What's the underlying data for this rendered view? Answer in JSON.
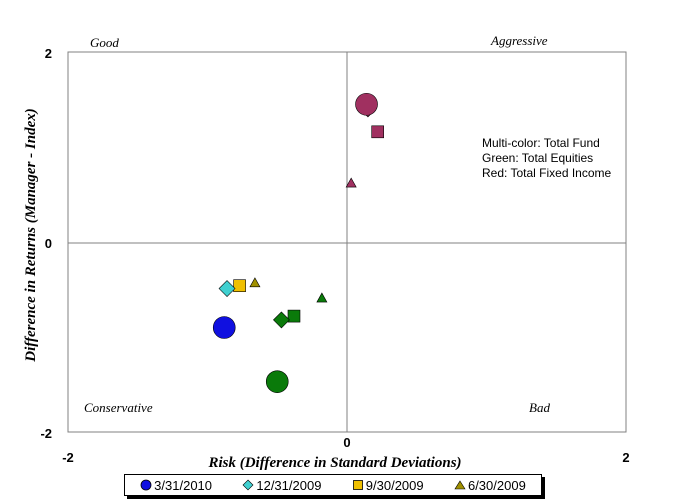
{
  "chart_data": {
    "type": "scatter",
    "xlabel": "Risk (Difference in Standard Deviations)",
    "ylabel": "Difference in Returns (Manager - Index)",
    "xlim": [
      -2,
      2
    ],
    "ylim": [
      -2,
      2
    ],
    "x_ticks": [
      "-2",
      "0",
      "2"
    ],
    "y_ticks": [
      "2",
      "0",
      "-2"
    ],
    "quadrant_labels": {
      "top_left": "Good",
      "top_right": "Aggressive",
      "bottom_left": "Conservative",
      "bottom_right": "Bad"
    },
    "annotation": [
      "Multi-color: Total Fund",
      "Green: Total Equities",
      "Red: Total Fixed Income"
    ],
    "colors": {
      "total_fund": {
        "3/31/2010": "#1010e0",
        "12/31/2009": "#40d0d0",
        "9/30/2009": "#f0c000",
        "6/30/2009": "#a09000"
      },
      "total_equities": "#0a7a0a",
      "total_fixed_income": "#a03060"
    },
    "series": [
      {
        "name": "3/31/2010",
        "marker": "circle",
        "points": [
          {
            "group": "Total Fund",
            "x": -0.88,
            "y": -0.9
          },
          {
            "group": "Total Equities",
            "x": -0.5,
            "y": -1.47
          },
          {
            "group": "Total Fixed Income",
            "x": 0.14,
            "y": 1.45
          }
        ]
      },
      {
        "name": "12/31/2009",
        "marker": "diamond",
        "points": [
          {
            "group": "Total Fund",
            "x": -0.86,
            "y": -0.49
          },
          {
            "group": "Total Equities",
            "x": -0.47,
            "y": -0.82
          },
          {
            "group": "Total Fixed Income",
            "x": 0.15,
            "y": 1.4
          }
        ]
      },
      {
        "name": "9/30/2009",
        "marker": "square",
        "points": [
          {
            "group": "Total Fund",
            "x": -0.77,
            "y": -0.46
          },
          {
            "group": "Total Equities",
            "x": -0.38,
            "y": -0.78
          },
          {
            "group": "Total Fixed Income",
            "x": 0.22,
            "y": 1.16
          }
        ]
      },
      {
        "name": "6/30/2009",
        "marker": "triangle",
        "points": [
          {
            "group": "Total Fund",
            "x": -0.66,
            "y": -0.43
          },
          {
            "group": "Total Equities",
            "x": -0.18,
            "y": -0.59
          },
          {
            "group": "Total Fixed Income",
            "x": 0.03,
            "y": 0.62
          }
        ]
      }
    ],
    "legend": {
      "placement": "bottom",
      "entries": [
        {
          "label": "3/31/2010",
          "marker": "circle",
          "color": "#1010e0"
        },
        {
          "label": "12/31/2009",
          "marker": "diamond",
          "color": "#40d0d0"
        },
        {
          "label": "9/30/2009",
          "marker": "square",
          "color": "#f0c000"
        },
        {
          "label": "6/30/2009",
          "marker": "triangle",
          "color": "#a09000"
        }
      ]
    },
    "grid": false
  }
}
